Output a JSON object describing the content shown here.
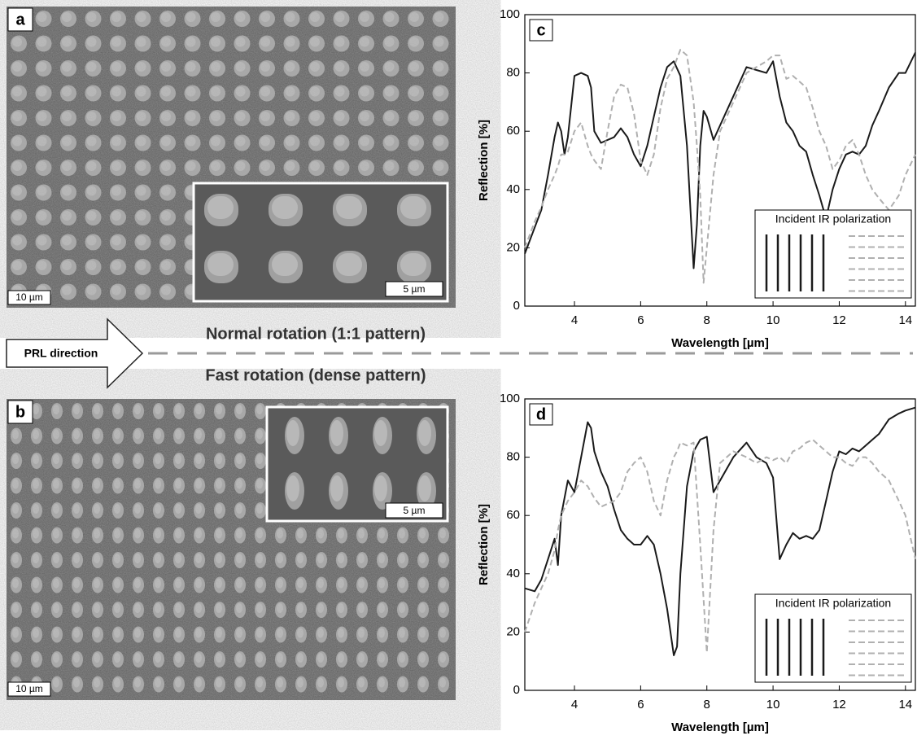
{
  "sem_images": [
    {
      "label": "a",
      "scale_bar": "10 µm",
      "inset_scale_bar": "5 µm"
    },
    {
      "label": "b",
      "scale_bar": "10 µm",
      "inset_scale_bar": "5 µm"
    }
  ],
  "middle": {
    "arrow_label": "PRL direction",
    "top_text": "Normal rotation (1:1 pattern)",
    "bottom_text": "Fast rotation (dense pattern)"
  },
  "chart_data": [
    {
      "type": "line",
      "label": "c",
      "x_label": "Wavelength [µm]",
      "y_label": "Reflection [%]",
      "xlim": [
        2.5,
        14.3
      ],
      "ylim": [
        0,
        100
      ],
      "xticks": [
        4,
        6,
        8,
        10,
        12,
        14
      ],
      "yticks": [
        0,
        20,
        40,
        60,
        80,
        100
      ],
      "legend_title": "Incident IR polarization",
      "legend": "lower right",
      "x": [
        2.5,
        2.8,
        3.0,
        3.2,
        3.4,
        3.5,
        3.6,
        3.7,
        3.8,
        4.0,
        4.2,
        4.4,
        4.5,
        4.6,
        4.8,
        5.0,
        5.2,
        5.4,
        5.6,
        5.8,
        6.0,
        6.2,
        6.4,
        6.6,
        6.8,
        7.0,
        7.2,
        7.4,
        7.6,
        7.7,
        7.8,
        7.9,
        8.0,
        8.2,
        8.4,
        8.8,
        9.2,
        9.5,
        9.8,
        10.0,
        10.2,
        10.4,
        10.6,
        10.8,
        11.0,
        11.2,
        11.4,
        11.6,
        11.8,
        12.0,
        12.2,
        12.4,
        12.6,
        12.8,
        13.0,
        13.2,
        13.5,
        13.8,
        14.0,
        14.3
      ],
      "series": [
        {
          "color": "#1a1a1a",
          "dashed": false,
          "values": [
            18,
            27,
            33,
            45,
            58,
            63,
            60,
            52,
            58,
            79,
            80,
            79,
            75,
            60,
            56,
            57,
            58,
            61,
            58,
            52,
            48,
            55,
            65,
            75,
            82,
            84,
            79,
            55,
            13,
            28,
            55,
            67,
            65,
            57,
            62,
            72,
            82,
            81,
            80,
            84,
            72,
            63,
            60,
            55,
            53,
            45,
            38,
            30,
            40,
            47,
            52,
            53,
            52,
            55,
            62,
            67,
            75,
            80,
            80,
            87
          ]
        },
        {
          "color": "#b0b0b0",
          "dashed": true,
          "values": [
            20,
            29,
            34,
            40,
            45,
            48,
            52,
            52,
            53,
            60,
            63,
            55,
            52,
            50,
            47,
            60,
            72,
            76,
            75,
            66,
            50,
            45,
            52,
            68,
            78,
            82,
            88,
            86,
            70,
            55,
            38,
            8,
            20,
            45,
            60,
            70,
            80,
            82,
            84,
            86,
            86,
            78,
            79,
            77,
            75,
            68,
            60,
            55,
            47,
            50,
            55,
            57,
            52,
            45,
            40,
            37,
            33,
            38,
            45,
            52
          ]
        }
      ]
    },
    {
      "type": "line",
      "label": "d",
      "x_label": "Wavelength [µm]",
      "y_label": "Reflection [%]",
      "xlim": [
        2.5,
        14.3
      ],
      "ylim": [
        0,
        100
      ],
      "xticks": [
        4,
        6,
        8,
        10,
        12,
        14
      ],
      "yticks": [
        0,
        20,
        40,
        60,
        80,
        100
      ],
      "legend_title": "Incident IR polarization",
      "legend": "lower right",
      "x": [
        2.5,
        2.8,
        3.0,
        3.2,
        3.4,
        3.5,
        3.6,
        3.8,
        4.0,
        4.2,
        4.4,
        4.5,
        4.6,
        4.8,
        5.0,
        5.2,
        5.4,
        5.6,
        5.8,
        6.0,
        6.2,
        6.4,
        6.6,
        6.8,
        7.0,
        7.1,
        7.2,
        7.4,
        7.6,
        7.8,
        8.0,
        8.2,
        8.4,
        8.8,
        9.2,
        9.5,
        9.8,
        10.0,
        10.2,
        10.4,
        10.6,
        10.8,
        11.0,
        11.2,
        11.4,
        11.6,
        11.8,
        12.0,
        12.2,
        12.4,
        12.6,
        12.8,
        13.0,
        13.2,
        13.5,
        13.8,
        14.0,
        14.3
      ],
      "series": [
        {
          "color": "#1a1a1a",
          "dashed": false,
          "values": [
            35,
            34,
            38,
            45,
            52,
            43,
            60,
            72,
            68,
            80,
            92,
            90,
            82,
            75,
            70,
            62,
            55,
            52,
            50,
            50,
            53,
            50,
            40,
            28,
            12,
            15,
            40,
            70,
            82,
            86,
            87,
            68,
            72,
            80,
            85,
            80,
            78,
            73,
            45,
            50,
            54,
            52,
            53,
            52,
            55,
            65,
            75,
            82,
            81,
            83,
            82,
            84,
            86,
            88,
            93,
            95,
            96,
            97
          ]
        },
        {
          "color": "#b0b0b0",
          "dashed": true,
          "values": [
            20,
            30,
            35,
            40,
            48,
            55,
            60,
            65,
            68,
            72,
            70,
            68,
            66,
            63,
            64,
            65,
            68,
            75,
            78,
            80,
            75,
            65,
            60,
            72,
            80,
            82,
            85,
            84,
            85,
            50,
            13,
            55,
            78,
            82,
            80,
            78,
            80,
            79,
            80,
            78,
            82,
            83,
            85,
            86,
            84,
            82,
            80,
            80,
            78,
            77,
            80,
            80,
            78,
            75,
            72,
            65,
            60,
            45
          ]
        }
      ]
    }
  ]
}
